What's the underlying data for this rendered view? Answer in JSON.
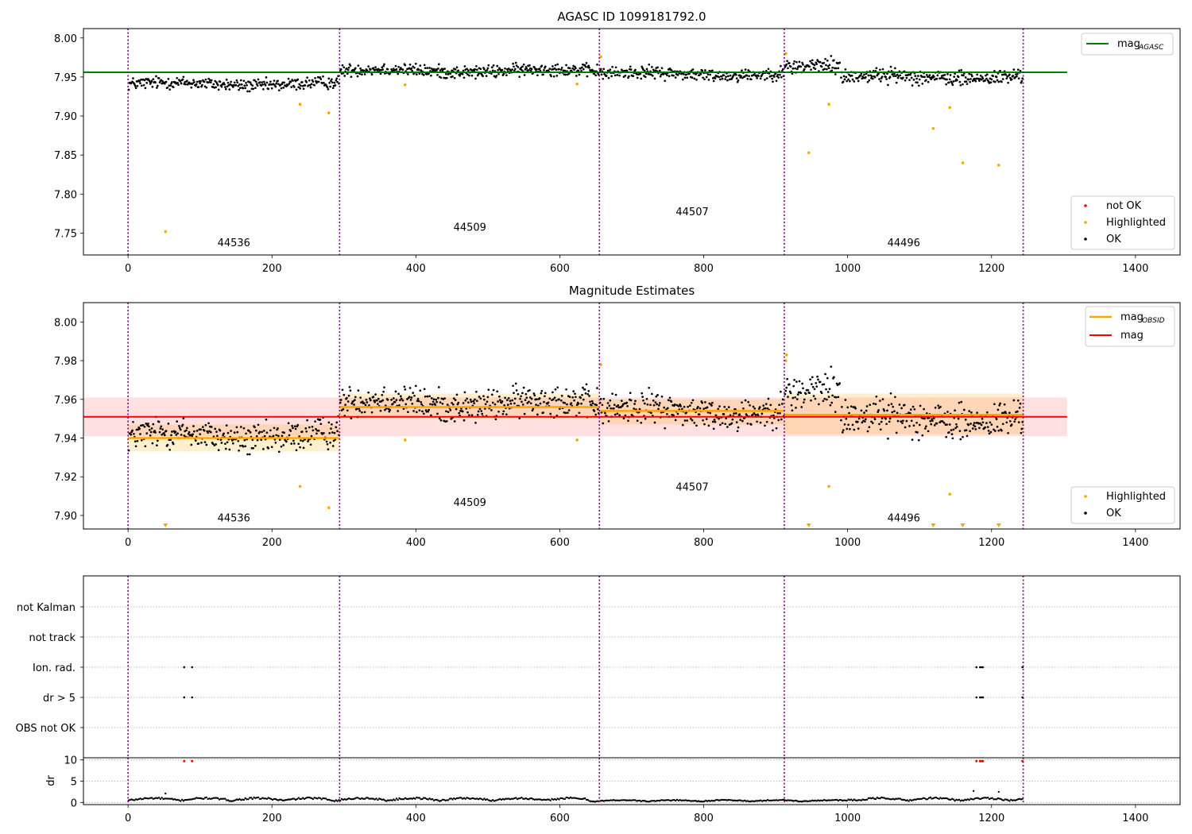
{
  "chart_data": [
    {
      "panel": "top",
      "type": "scatter",
      "title": "AGASC ID 1099181792.0",
      "xlabel": "",
      "ylabel": "",
      "xlim": [
        -62,
        1462
      ],
      "ylim": [
        7.722,
        8.012
      ],
      "x_ticks": [
        0,
        200,
        400,
        600,
        800,
        1000,
        1200,
        1400
      ],
      "y_ticks": [
        "8.00",
        "7.95",
        "7.90",
        "7.85",
        "7.80",
        "7.75"
      ],
      "y_tick_values": [
        8.0,
        7.95,
        7.9,
        7.85,
        7.8,
        7.75
      ],
      "obsid_boundaries": [
        0,
        294,
        655,
        912,
        1244
      ],
      "obsid_labels": [
        {
          "text": "44536",
          "x": 147,
          "y": 7.733
        },
        {
          "text": "44509",
          "x": 475,
          "y": 7.753
        },
        {
          "text": "44507",
          "x": 784,
          "y": 7.773
        },
        {
          "text": "44496",
          "x": 1078,
          "y": 7.733
        }
      ],
      "reference_line": {
        "name": "mag",
        "subscript": "AGASC",
        "y": 7.956,
        "x_range": [
          -62,
          1305
        ],
        "color": "#008000"
      },
      "segments": [
        {
          "x0": 0,
          "x1": 294,
          "mean": 7.941,
          "amp": 0.006
        },
        {
          "x0": 294,
          "x1": 655,
          "mean": 7.958,
          "amp": 0.006
        },
        {
          "x0": 655,
          "x1": 912,
          "mean": 7.954,
          "amp": 0.006
        },
        {
          "x0": 912,
          "x1": 990,
          "mean": 7.962,
          "amp": 0.008
        },
        {
          "x0": 990,
          "x1": 1244,
          "mean": 7.95,
          "amp": 0.007
        }
      ],
      "highlighted_points": [
        [
          52,
          7.752
        ],
        [
          239,
          7.915
        ],
        [
          279,
          7.904
        ],
        [
          385,
          7.94
        ],
        [
          624,
          7.941
        ],
        [
          657,
          7.976
        ],
        [
          914,
          7.98
        ],
        [
          946,
          7.853
        ],
        [
          974,
          7.915
        ],
        [
          1119,
          7.884
        ],
        [
          1142,
          7.911
        ],
        [
          1160,
          7.84
        ],
        [
          1210,
          7.837
        ]
      ],
      "legend": {
        "position": "bottom-right",
        "entries": [
          "not OK",
          "Highlighted",
          "OK"
        ]
      },
      "legend_top": {
        "position": "top-right",
        "entries": [
          {
            "name": "mag",
            "subscript": "AGASC"
          }
        ]
      }
    },
    {
      "panel": "middle",
      "type": "scatter",
      "title": "Magnitude Estimates",
      "xlabel": "",
      "ylabel": "",
      "xlim": [
        -62,
        1462
      ],
      "ylim": [
        7.893,
        8.01
      ],
      "x_ticks": [
        0,
        200,
        400,
        600,
        800,
        1000,
        1200,
        1400
      ],
      "y_ticks": [
        "8.00",
        "7.98",
        "7.96",
        "7.94",
        "7.92",
        "7.90"
      ],
      "y_tick_values": [
        8.0,
        7.98,
        7.96,
        7.94,
        7.92,
        7.9
      ],
      "obsid_boundaries": [
        0,
        294,
        655,
        912,
        1244
      ],
      "obsid_labels": [
        {
          "text": "44536",
          "x": 147,
          "y": 7.897
        },
        {
          "text": "44509",
          "x": 475,
          "y": 7.905
        },
        {
          "text": "44507",
          "x": 784,
          "y": 7.913
        },
        {
          "text": "44496",
          "x": 1078,
          "y": 7.897
        }
      ],
      "mag_line": {
        "name": "mag",
        "y": 7.951,
        "band": [
          7.941,
          7.961
        ],
        "x_range": [
          -62,
          1305
        ],
        "color": "#ff0000"
      },
      "mag_obsid": [
        {
          "x0": 0,
          "x1": 294,
          "y": 7.94,
          "band": [
            7.933,
            7.947
          ]
        },
        {
          "x0": 294,
          "x1": 655,
          "y": 7.956,
          "band": [
            7.95,
            7.963
          ]
        },
        {
          "x0": 655,
          "x1": 912,
          "y": 7.954,
          "band": [
            7.947,
            7.96
          ]
        },
        {
          "x0": 912,
          "x1": 1244,
          "y": 7.952,
          "band": [
            7.942,
            7.963
          ]
        }
      ],
      "segments": [
        {
          "x0": 0,
          "x1": 294,
          "mean": 7.941,
          "amp": 0.006
        },
        {
          "x0": 294,
          "x1": 655,
          "mean": 7.958,
          "amp": 0.006
        },
        {
          "x0": 655,
          "x1": 912,
          "mean": 7.954,
          "amp": 0.006
        },
        {
          "x0": 912,
          "x1": 990,
          "mean": 7.962,
          "amp": 0.008
        },
        {
          "x0": 990,
          "x1": 1244,
          "mean": 7.95,
          "amp": 0.007
        }
      ],
      "highlighted_points": [
        [
          239,
          7.915
        ],
        [
          279,
          7.904
        ],
        [
          385,
          7.939
        ],
        [
          624,
          7.939
        ],
        [
          657,
          7.978
        ],
        [
          914,
          7.98
        ],
        [
          915,
          7.983
        ],
        [
          974,
          7.915
        ],
        [
          1142,
          7.911
        ]
      ],
      "out_of_range_markers": [
        52,
        946,
        1119,
        1160,
        1210
      ],
      "legend": {
        "position": "bottom-right",
        "entries": [
          "Highlighted",
          "OK"
        ]
      },
      "legend_top": {
        "position": "top-right",
        "entries": [
          {
            "name": "mag",
            "subscript": "OBSID"
          },
          {
            "name": "mag",
            "subscript": ""
          }
        ]
      }
    },
    {
      "panel": "flags",
      "type": "scatter",
      "xlim": [
        -62,
        1462
      ],
      "categories": [
        "not Kalman",
        "not track",
        "Ion. rad.",
        "dr > 5",
        "OBS not OK"
      ],
      "obsid_boundaries": [
        0,
        294,
        655,
        912,
        1244
      ],
      "flagged": {
        "Ion. rad.": [
          78,
          89,
          1179,
          1184,
          1186,
          1188,
          1243
        ],
        "dr > 5": [
          78,
          89,
          1179,
          1184,
          1186,
          1188,
          1243
        ]
      }
    },
    {
      "panel": "dr",
      "type": "scatter",
      "ylabel": "dr",
      "xlim": [
        -62,
        1462
      ],
      "ylim": [
        -0.5,
        10.5
      ],
      "y_ticks": [
        "0",
        "5",
        "10"
      ],
      "y_tick_values": [
        0,
        5,
        10
      ],
      "x_ticks": [
        0,
        200,
        400,
        600,
        800,
        1000,
        1200,
        1400
      ],
      "obsid_boundaries": [
        0,
        294,
        655,
        912,
        1244
      ],
      "spikes": [
        [
          52,
          2.1
        ],
        [
          1175,
          2.7
        ],
        [
          1210,
          2.5
        ]
      ],
      "red_markers": [
        78,
        89,
        1179,
        1184,
        1186,
        1188,
        1243
      ]
    }
  ]
}
